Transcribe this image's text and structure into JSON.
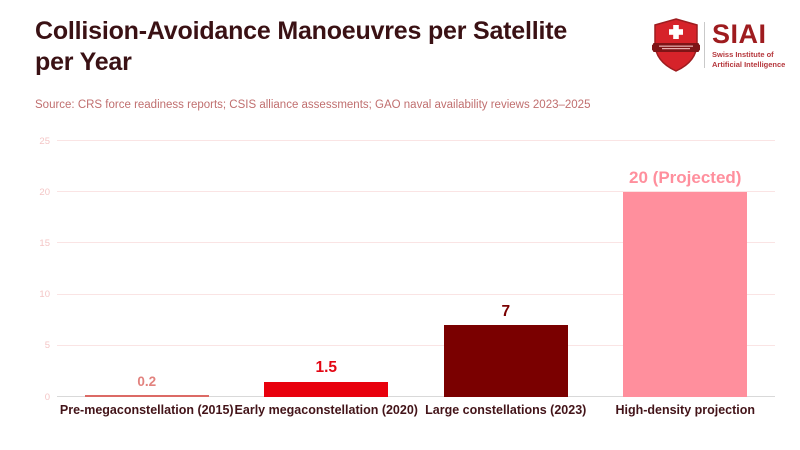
{
  "header": {
    "title": "Collision-Avoidance Manoeuvres per Satellite per Year",
    "source": "Source: CRS force readiness reports; CSIS alliance assessments; GAO naval availability reviews 2023–2025"
  },
  "logo": {
    "acronym": "SIAI",
    "org_line1": "Swiss Institute of",
    "org_line2": "Artificial Intelligence",
    "icon": "swiss-shield-icon",
    "colors": {
      "shield_red": "#D6232A",
      "shield_dark_band": "#7E1416",
      "cross_white": "#FFFFFF",
      "acronym_red": "#9E1C1F",
      "subtext_red": "#B5373C"
    }
  },
  "chart_data": {
    "type": "bar",
    "title": "Collision-Avoidance Manoeuvres per Satellite per Year",
    "categories": [
      "Pre-megaconstellation (2015)",
      "Early megaconstellation (2020)",
      "Large constellations (2023)",
      "High-density projection"
    ],
    "values": [
      0.2,
      1.5,
      7,
      20
    ],
    "value_labels": [
      "0.2",
      "1.5",
      "7",
      "20 (Projected)"
    ],
    "bar_colors": [
      "#DC6A65",
      "#E8000D",
      "#7A0000",
      "#FF8F9D"
    ],
    "label_colors": [
      "#E2827E",
      "#E30613",
      "#7A0000",
      "#FF8F9D"
    ],
    "xlabel": "",
    "ylabel": "",
    "ylim": [
      0,
      25
    ],
    "yticks": [
      0,
      5,
      10,
      15,
      20,
      25
    ],
    "grid": true,
    "legend": false,
    "gridline_color": "#FAE4E4",
    "zero_line_color": "#D9D9D9",
    "ytick_color": "#F4C6C6"
  }
}
